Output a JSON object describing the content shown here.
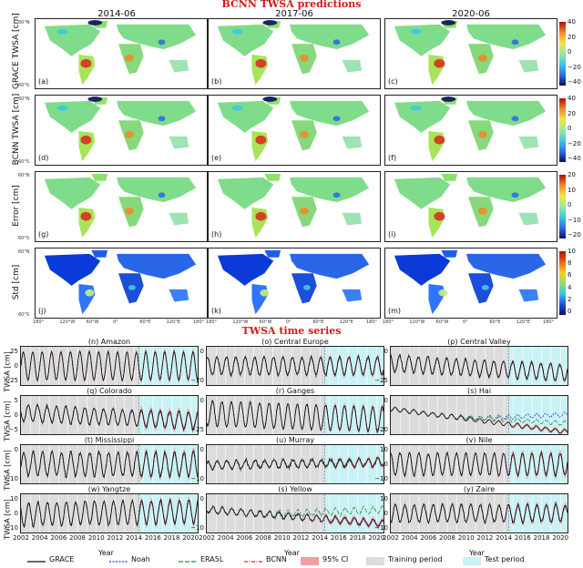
{
  "figure": {
    "top_title": "BCNN TWSA predictions",
    "bottom_title": "TWSA time series",
    "columns": [
      "2014-06",
      "2017-06",
      "2020-06"
    ],
    "rows": [
      {
        "label": "GRACE TWSA [cm]",
        "letters": [
          "(a)",
          "(b)",
          "(c)"
        ],
        "cbar_ticks": [
          "40",
          "20",
          "0",
          "−20",
          "−40"
        ],
        "palette": "diverging"
      },
      {
        "label": "BCNN TWSA [cm]",
        "letters": [
          "(d)",
          "(e)",
          "(f)"
        ],
        "cbar_ticks": [
          "40",
          "20",
          "0",
          "−20",
          "−40"
        ],
        "palette": "diverging"
      },
      {
        "label": "Error [cm]",
        "letters": [
          "(g)",
          "(h)",
          "(i)"
        ],
        "cbar_ticks": [
          "20",
          "10",
          "0",
          "−10",
          "−20"
        ],
        "palette": "diverging"
      },
      {
        "label": "Std [cm]",
        "letters": [
          "(j)",
          "(k)",
          "(m)"
        ],
        "cbar_ticks": [
          "10",
          "8",
          "6",
          "4",
          "2",
          "0"
        ],
        "palette": "sequential"
      }
    ],
    "lat_labels": [
      "60°N",
      "60°S",
      "60°N",
      "60°S",
      "60°N",
      "60°S",
      "60°N",
      "60°S"
    ],
    "lon_labels": [
      "180°",
      "120°W",
      "60°W",
      "0°",
      "60°E",
      "120°E",
      "180°"
    ],
    "colors": {
      "title_red": "#d41a1a",
      "training_bg": "#dcdcdc",
      "test_bg": "#c9f2f5",
      "grace": "#111111",
      "noah": "#2233cc",
      "era5l": "#2e8b3a",
      "bcnn": "#e0262a",
      "ci": "#f0a0a0"
    }
  },
  "chart_data": {
    "type": "line",
    "x_ticks": [
      "2002",
      "2004",
      "2006",
      "2008",
      "2010",
      "2012",
      "2014",
      "2016",
      "2018",
      "2020"
    ],
    "xlim": [
      2002,
      2020.75
    ],
    "test_start": 2014.5,
    "xlabel": "Year",
    "ylabel": "TWSA [cm]",
    "legend": [
      "GRACE",
      "Noah",
      "ERA5L",
      "BCNN",
      "95% CI",
      "Training period",
      "Test period"
    ],
    "panels": [
      {
        "title": "(n) Amazon",
        "ylim": [
          -26,
          28
        ],
        "yticks": [
          "25",
          "0",
          "−25"
        ],
        "amp": 20,
        "trend": 0,
        "noise": 1.5
      },
      {
        "title": "(o) Central Europe",
        "ylim": [
          -22,
          12
        ],
        "yticks": [
          "0",
          "−20"
        ],
        "amp": 8,
        "trend": 0,
        "noise": 2
      },
      {
        "title": "(p) Central Valley",
        "ylim": [
          -28,
          18
        ],
        "yticks": [
          "0",
          "−25"
        ],
        "amp": 10,
        "trend": -0.6,
        "noise": 2.5
      },
      {
        "title": "(q) Colorado",
        "ylim": [
          -10,
          8
        ],
        "yticks": [
          "5",
          "0",
          "−5"
        ],
        "amp": 4,
        "trend": -0.2,
        "noise": 1
      },
      {
        "title": "(r) Ganges",
        "ylim": [
          -26,
          22
        ],
        "yticks": [
          "0",
          "−25"
        ],
        "amp": 16,
        "trend": -0.4,
        "noise": 1.5
      },
      {
        "title": "(s) Hai",
        "ylim": [
          -22,
          6
        ],
        "yticks": [
          "0",
          "−20"
        ],
        "amp": 1.5,
        "trend": -0.9,
        "noise": 0.6
      },
      {
        "title": "(t) Mississippi",
        "ylim": [
          -12,
          10
        ],
        "yticks": [
          "0",
          "−10"
        ],
        "amp": 7,
        "trend": 0,
        "noise": 1.5
      },
      {
        "title": "(u) Murray",
        "ylim": [
          -14,
          10
        ],
        "yticks": [
          "0",
          "−10"
        ],
        "amp": 2.5,
        "trend": 0.1,
        "noise": 1.5
      },
      {
        "title": "(v) Nile",
        "ylim": [
          -12,
          12
        ],
        "yticks": [
          "10",
          "0",
          "−10"
        ],
        "amp": 7,
        "trend": 0,
        "noise": 1.2
      },
      {
        "title": "(w) Yangtze",
        "ylim": [
          -12,
          14
        ],
        "yticks": [
          "10",
          "0",
          "−10"
        ],
        "amp": 8,
        "trend": 0.1,
        "noise": 1.5
      },
      {
        "title": "(s) Yellow",
        "ylim": [
          -12,
          6
        ],
        "yticks": [
          "0",
          "−10"
        ],
        "amp": 1.5,
        "trend": -0.35,
        "noise": 0.8
      },
      {
        "title": "(y) Zaire",
        "ylim": [
          -12,
          14
        ],
        "yticks": [
          "10",
          "0",
          "−10"
        ],
        "amp": 6,
        "trend": 0,
        "noise": 1.5
      }
    ]
  }
}
